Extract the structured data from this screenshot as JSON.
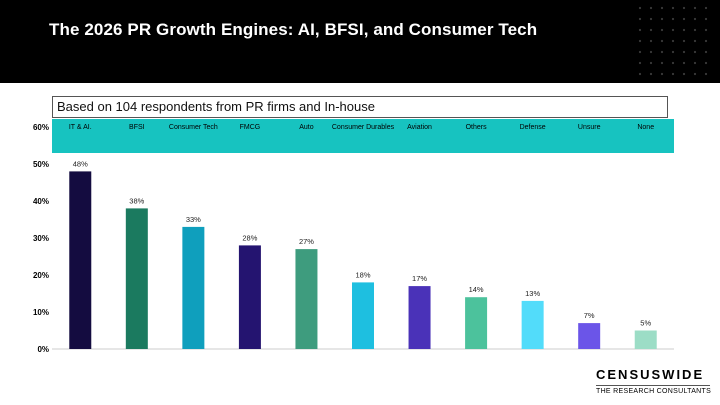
{
  "title": "The 2026 PR Growth Engines: AI, BFSI, and Consumer Tech",
  "subtitle": "Based on 104 respondents from PR firms and In-house",
  "brand": {
    "name": "CENSUSWIDE",
    "tagline": "THE RESEARCH CONSULTANTS"
  },
  "colors": {
    "header_bg": "#000000",
    "category_band": "#17c3c0"
  },
  "chart_data": {
    "type": "bar",
    "title": "The 2026 PR Growth Engines: AI, BFSI, and Consumer Tech",
    "xlabel": "",
    "ylabel": "",
    "ylim": [
      0,
      60
    ],
    "yticks": [
      "0%",
      "10%",
      "20%",
      "30%",
      "40%",
      "50%",
      "60%"
    ],
    "categories": [
      "IT & AI.",
      "BFSI",
      "Consumer Tech",
      "FMCG",
      "Auto",
      "Consumer Durables",
      "Aviation",
      "Others",
      "Defense",
      "Unsure",
      "None"
    ],
    "values": [
      48,
      38,
      33,
      28,
      27,
      18,
      17,
      14,
      13,
      7,
      5
    ],
    "data_labels": [
      "48%",
      "38%",
      "33%",
      "28%",
      "27%",
      "18%",
      "17%",
      "14%",
      "13%",
      "7%",
      "5%"
    ],
    "bar_colors": [
      "#140c40",
      "#1b7a5f",
      "#0f9fbd",
      "#241470",
      "#3e9c7e",
      "#1ebfe0",
      "#4a32b8",
      "#4cc29c",
      "#52dcfa",
      "#6b55e8",
      "#9cddc6"
    ]
  }
}
